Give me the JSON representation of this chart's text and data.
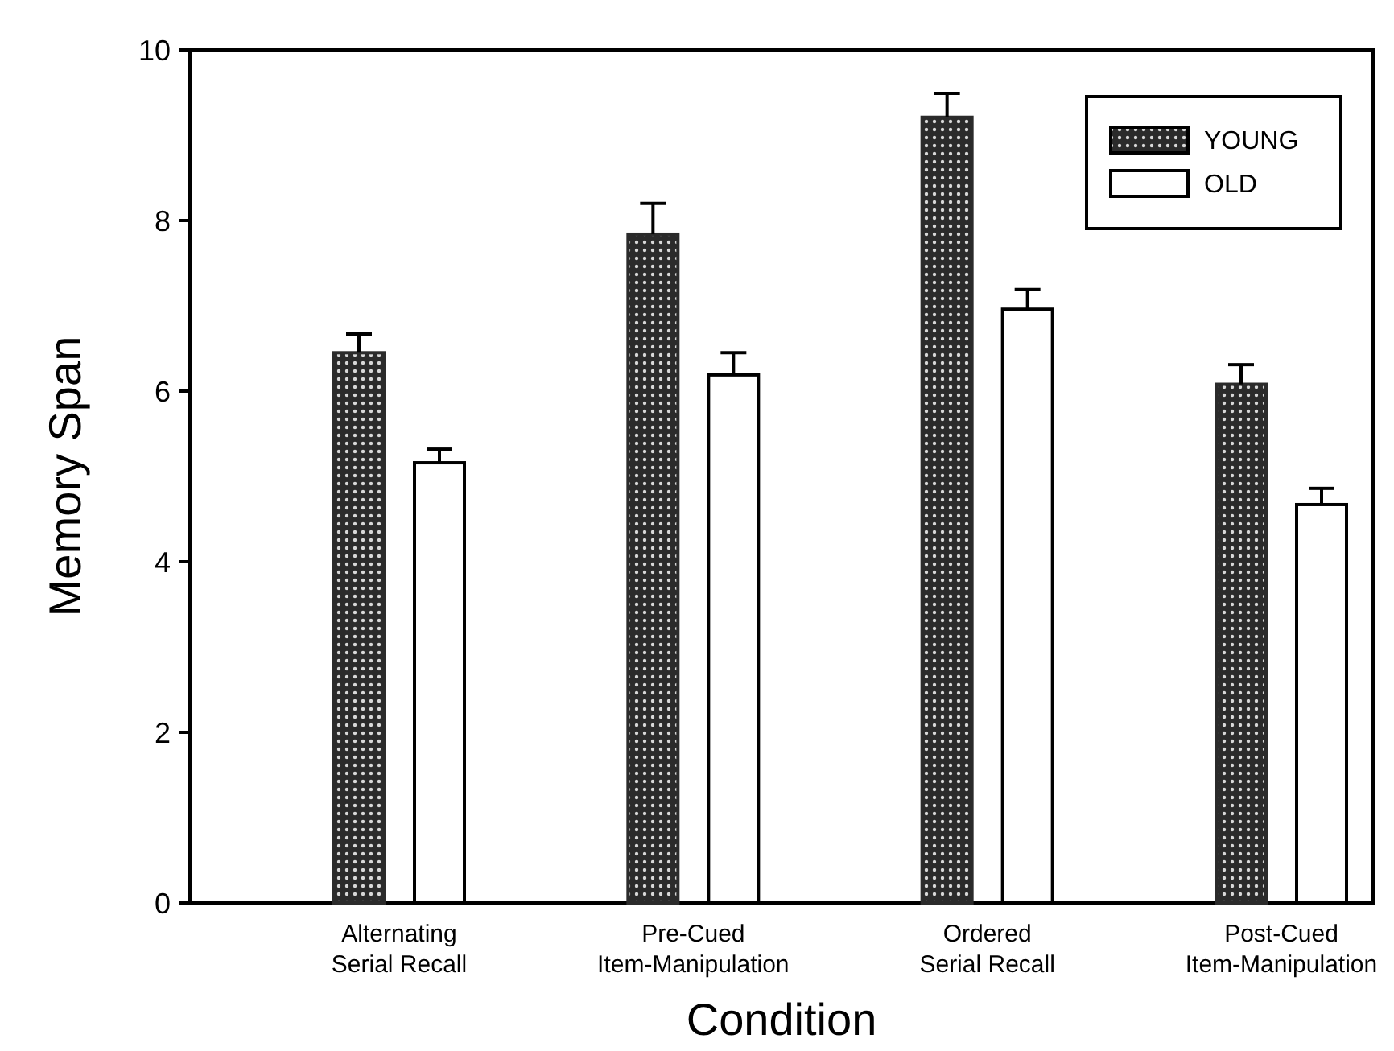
{
  "chart_data": {
    "type": "bar",
    "xlabel": "Condition",
    "ylabel": "Memory Span",
    "categories": [
      "Alternating Serial Recall",
      "Pre-Cued Item-Manipulation",
      "Ordered Serial Recall",
      "Post-Cued Item-Manipulation"
    ],
    "series": [
      {
        "name": "YOUNG",
        "color": "#2b2b2b",
        "values": [
          6.45,
          7.84,
          9.21,
          6.08
        ],
        "errors": [
          [
            6.45,
            6.67
          ],
          [
            7.84,
            8.2
          ],
          [
            9.21,
            9.49
          ],
          [
            6.08,
            6.31
          ]
        ]
      },
      {
        "name": "OLD",
        "color": "#ffffff",
        "values": [
          5.16,
          6.19,
          6.96,
          4.67
        ],
        "errors": [
          [
            5.16,
            5.32
          ],
          [
            6.19,
            6.45
          ],
          [
            6.96,
            7.19
          ],
          [
            4.67,
            4.86
          ]
        ]
      }
    ],
    "ylim": [
      0,
      10
    ],
    "yticks": [
      0,
      2,
      4,
      6,
      8,
      10
    ],
    "grid": false,
    "legend": "top right"
  }
}
